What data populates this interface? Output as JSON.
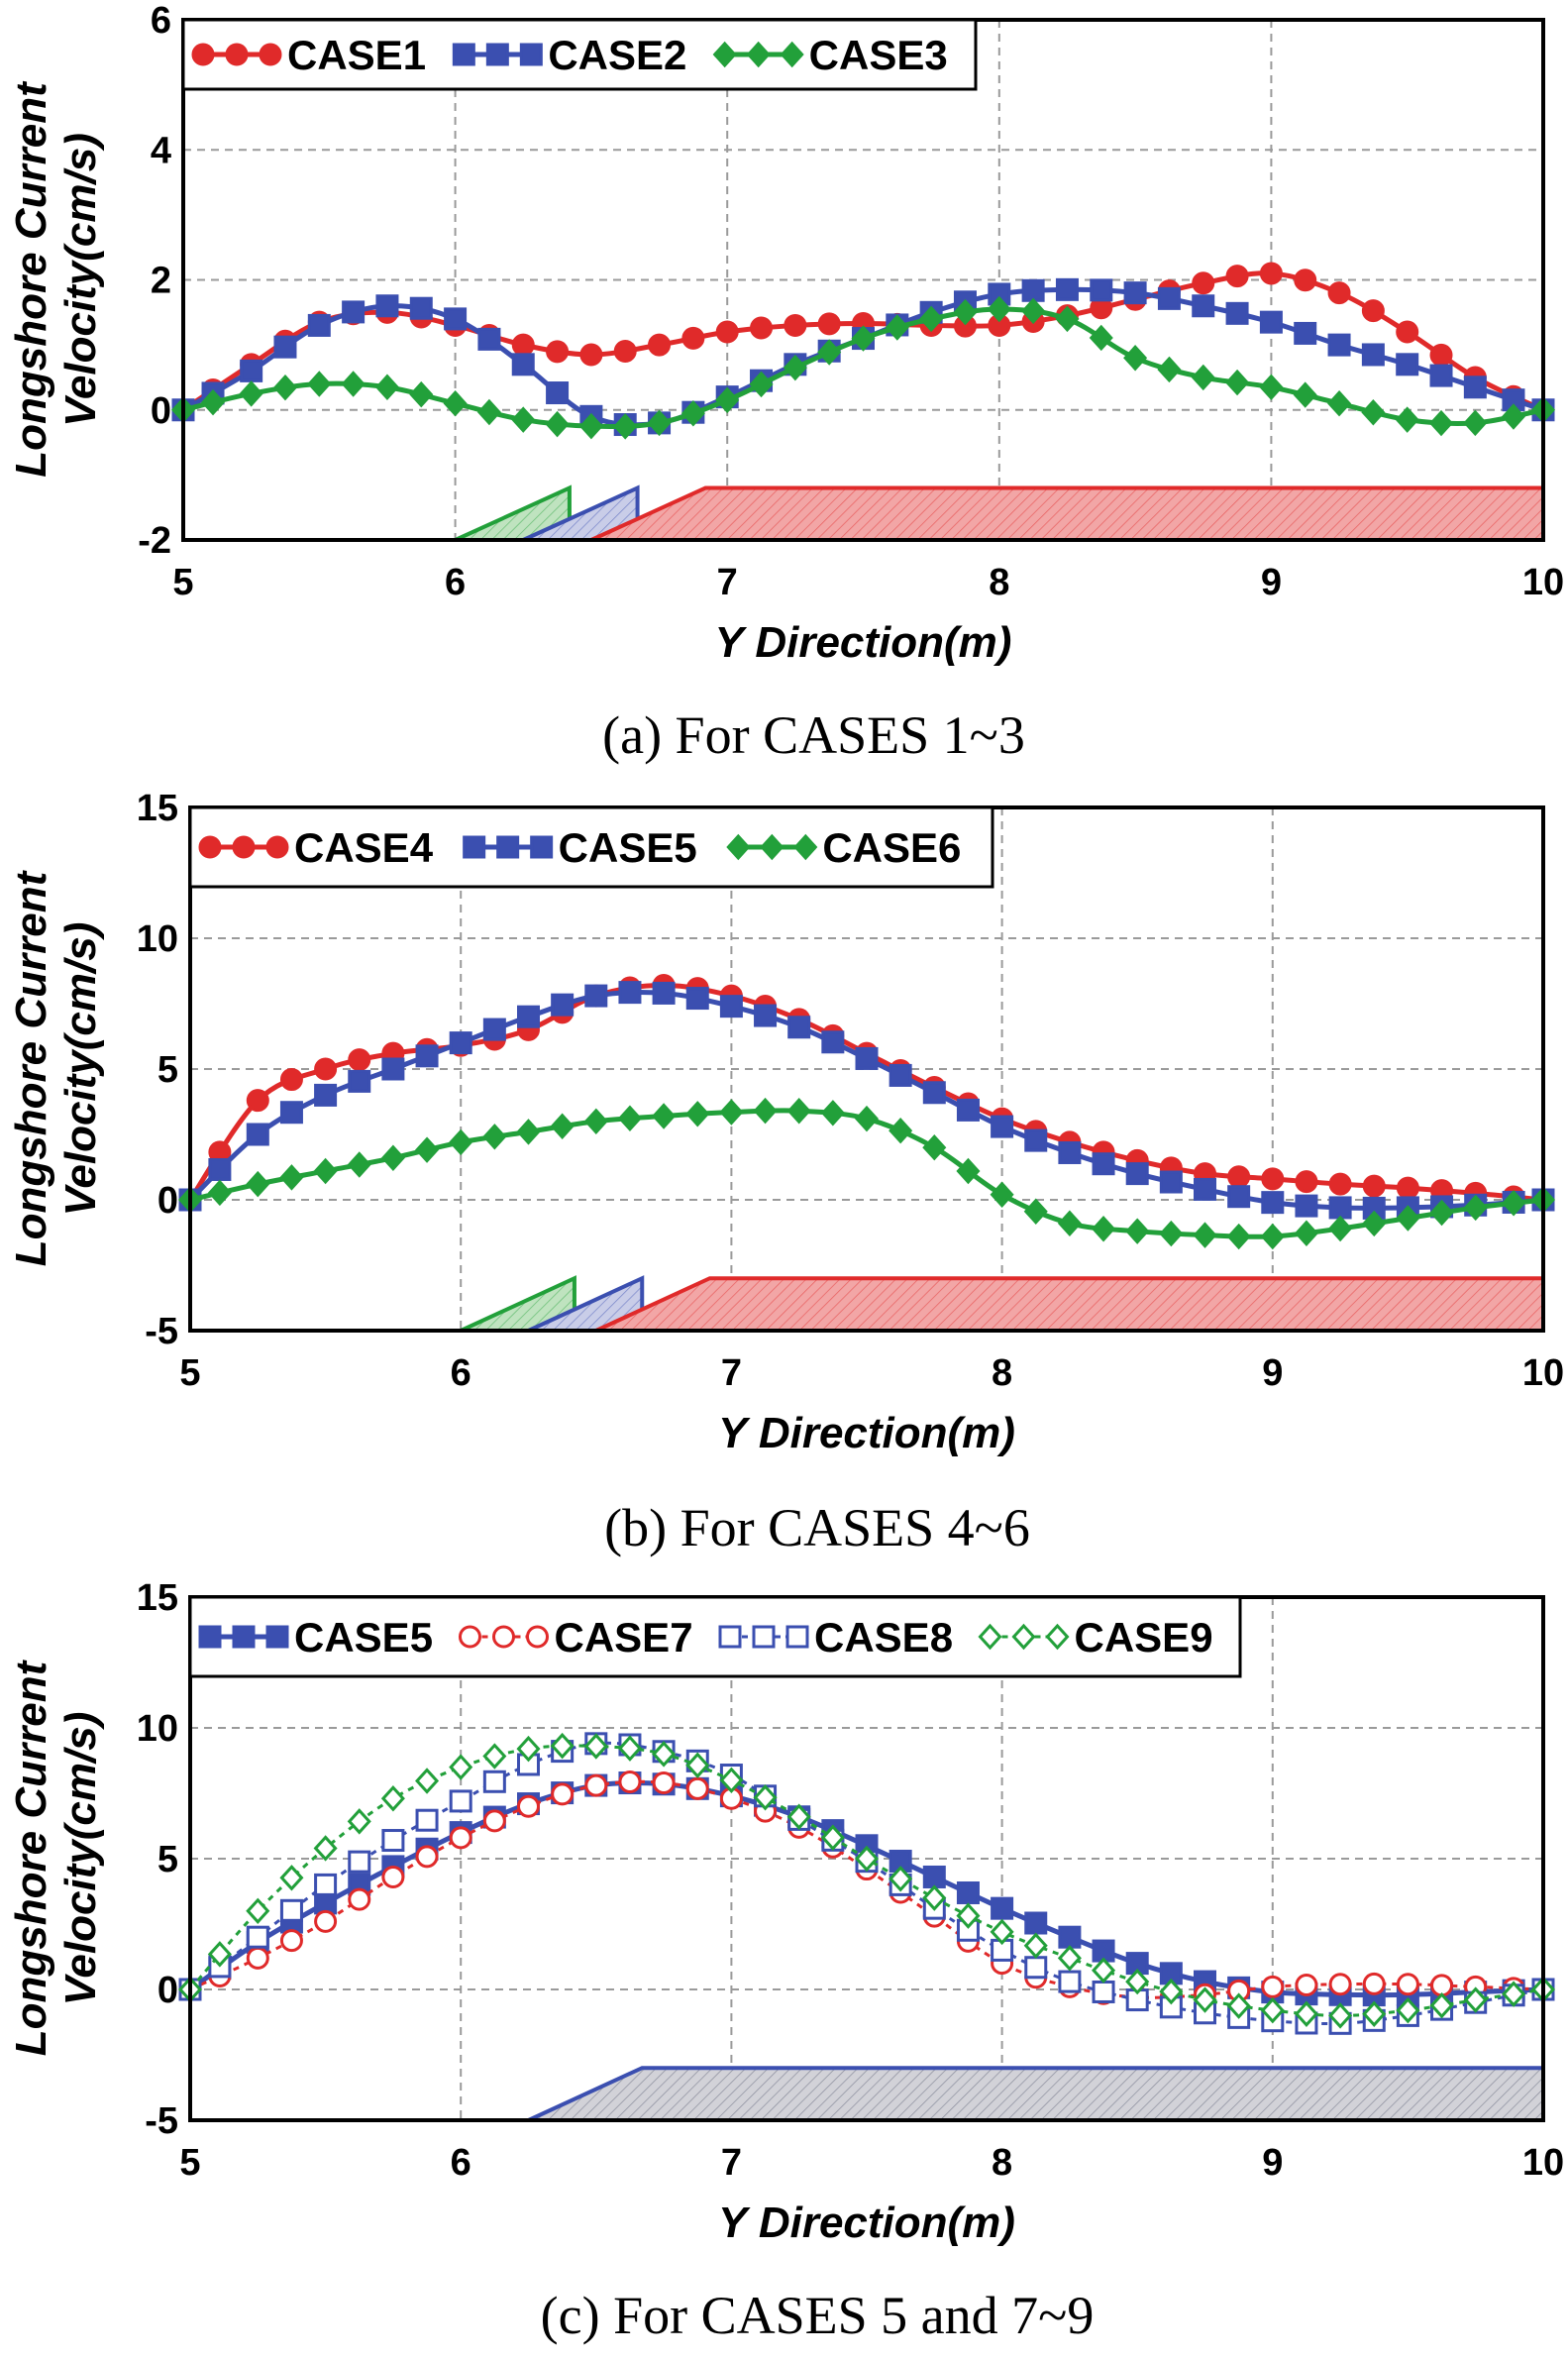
{
  "chart_data": [
    {
      "type": "line",
      "caption": "(a) For CASES 1~3",
      "xlabel": "Y Direction(m)",
      "ylabel_line1": "Longshore Current",
      "ylabel_line2": "Velocity(cm/s)",
      "xlim": [
        5,
        10
      ],
      "ylim": [
        -2,
        6
      ],
      "xticks": [
        "5",
        "6",
        "7",
        "8",
        "9",
        "10"
      ],
      "yticks": [
        "-2",
        "0",
        "2",
        "4",
        "6"
      ],
      "grid": true,
      "legend_position": "top-left",
      "structures": [
        {
          "color": "#22a03a",
          "fill": "#bfe3bf",
          "x_toe": 6.0,
          "x_top": 6.42,
          "base": -2,
          "top": -1.2,
          "x_end": 6.42
        },
        {
          "color": "#3b4fb0",
          "fill": "#c9cde8",
          "x_toe": 6.25,
          "x_top": 6.67,
          "base": -2,
          "top": -1.2,
          "x_end": 6.67
        },
        {
          "color": "#e02a2a",
          "fill": "#f2a6a6",
          "x_toe": 6.5,
          "x_top": 6.92,
          "base": -2,
          "top": -1.2,
          "x_end": 10.0
        }
      ],
      "series": [
        {
          "name": "CASE1",
          "color": "#e02a2a",
          "marker": "circle",
          "filled": true,
          "dashed": false,
          "points": [
            [
              5.0,
              0.0
            ],
            [
              5.25,
              0.7
            ],
            [
              5.5,
              1.35
            ],
            [
              5.75,
              1.5
            ],
            [
              6.0,
              1.3
            ],
            [
              6.25,
              1.0
            ],
            [
              6.5,
              0.85
            ],
            [
              6.75,
              1.0
            ],
            [
              7.0,
              1.2
            ],
            [
              7.25,
              1.3
            ],
            [
              7.5,
              1.33
            ],
            [
              7.75,
              1.3
            ],
            [
              8.0,
              1.3
            ],
            [
              8.25,
              1.45
            ],
            [
              8.5,
              1.7
            ],
            [
              8.75,
              1.95
            ],
            [
              9.0,
              2.1
            ],
            [
              9.25,
              1.8
            ],
            [
              9.5,
              1.2
            ],
            [
              9.75,
              0.5
            ],
            [
              10.0,
              0.0
            ]
          ]
        },
        {
          "name": "CASE2",
          "color": "#3b4fb0",
          "marker": "square",
          "filled": true,
          "dashed": false,
          "points": [
            [
              5.0,
              0.0
            ],
            [
              5.25,
              0.6
            ],
            [
              5.5,
              1.3
            ],
            [
              5.75,
              1.6
            ],
            [
              6.0,
              1.4
            ],
            [
              6.25,
              0.7
            ],
            [
              6.5,
              -0.1
            ],
            [
              6.75,
              -0.2
            ],
            [
              7.0,
              0.2
            ],
            [
              7.25,
              0.7
            ],
            [
              7.5,
              1.1
            ],
            [
              7.75,
              1.5
            ],
            [
              8.0,
              1.78
            ],
            [
              8.25,
              1.85
            ],
            [
              8.5,
              1.8
            ],
            [
              8.75,
              1.6
            ],
            [
              9.0,
              1.35
            ],
            [
              9.25,
              1.0
            ],
            [
              9.5,
              0.7
            ],
            [
              9.75,
              0.35
            ],
            [
              10.0,
              0.0
            ]
          ]
        },
        {
          "name": "CASE3",
          "color": "#22a03a",
          "marker": "diamond",
          "filled": true,
          "dashed": false,
          "points": [
            [
              5.0,
              0.0
            ],
            [
              5.25,
              0.25
            ],
            [
              5.5,
              0.4
            ],
            [
              5.75,
              0.35
            ],
            [
              6.0,
              0.1
            ],
            [
              6.25,
              -0.15
            ],
            [
              6.5,
              -0.25
            ],
            [
              6.75,
              -0.2
            ],
            [
              7.0,
              0.15
            ],
            [
              7.25,
              0.65
            ],
            [
              7.5,
              1.1
            ],
            [
              7.75,
              1.4
            ],
            [
              8.0,
              1.55
            ],
            [
              8.25,
              1.4
            ],
            [
              8.5,
              0.8
            ],
            [
              8.75,
              0.5
            ],
            [
              9.0,
              0.35
            ],
            [
              9.25,
              0.1
            ],
            [
              9.5,
              -0.15
            ],
            [
              9.75,
              -0.2
            ],
            [
              10.0,
              0.0
            ]
          ]
        }
      ]
    },
    {
      "type": "line",
      "caption": "(b) For CASES 4~6",
      "xlabel": "Y Direction(m)",
      "ylabel_line1": "Longshore Current",
      "ylabel_line2": "Velocity(cm/s)",
      "xlim": [
        5,
        10
      ],
      "ylim": [
        -5,
        15
      ],
      "xticks": [
        "5",
        "6",
        "7",
        "8",
        "9",
        "10"
      ],
      "yticks": [
        "-5",
        "0",
        "5",
        "10",
        "15"
      ],
      "grid": true,
      "legend_position": "top-left",
      "structures": [
        {
          "color": "#22a03a",
          "fill": "#bfe3bf",
          "x_toe": 6.0,
          "x_top": 6.42,
          "base": -5,
          "top": -3.0,
          "x_end": 6.42
        },
        {
          "color": "#3b4fb0",
          "fill": "#c9cde8",
          "x_toe": 6.25,
          "x_top": 6.67,
          "base": -5,
          "top": -3.0,
          "x_end": 6.67
        },
        {
          "color": "#e02a2a",
          "fill": "#f2a6a6",
          "x_toe": 6.5,
          "x_top": 6.92,
          "base": -5,
          "top": -3.0,
          "x_end": 10.0
        }
      ],
      "series": [
        {
          "name": "CASE4",
          "color": "#e02a2a",
          "marker": "circle",
          "filled": true,
          "dashed": false,
          "points": [
            [
              5.0,
              0.0
            ],
            [
              5.25,
              3.8
            ],
            [
              5.5,
              5.0
            ],
            [
              5.75,
              5.6
            ],
            [
              6.0,
              5.9
            ],
            [
              6.25,
              6.5
            ],
            [
              6.5,
              7.8
            ],
            [
              6.75,
              8.2
            ],
            [
              7.0,
              7.8
            ],
            [
              7.25,
              6.9
            ],
            [
              7.5,
              5.6
            ],
            [
              7.75,
              4.3
            ],
            [
              8.0,
              3.1
            ],
            [
              8.25,
              2.2
            ],
            [
              8.5,
              1.5
            ],
            [
              8.75,
              1.0
            ],
            [
              9.0,
              0.8
            ],
            [
              9.25,
              0.6
            ],
            [
              9.5,
              0.45
            ],
            [
              9.75,
              0.25
            ],
            [
              10.0,
              0.0
            ]
          ]
        },
        {
          "name": "CASE5",
          "color": "#3b4fb0",
          "marker": "square",
          "filled": true,
          "dashed": false,
          "points": [
            [
              5.0,
              0.0
            ],
            [
              5.25,
              2.5
            ],
            [
              5.5,
              4.0
            ],
            [
              5.75,
              5.0
            ],
            [
              6.0,
              6.0
            ],
            [
              6.25,
              7.0
            ],
            [
              6.5,
              7.8
            ],
            [
              6.75,
              7.9
            ],
            [
              7.0,
              7.4
            ],
            [
              7.25,
              6.6
            ],
            [
              7.5,
              5.4
            ],
            [
              7.75,
              4.1
            ],
            [
              8.0,
              2.8
            ],
            [
              8.25,
              1.8
            ],
            [
              8.5,
              1.0
            ],
            [
              8.75,
              0.4
            ],
            [
              9.0,
              -0.1
            ],
            [
              9.25,
              -0.3
            ],
            [
              9.5,
              -0.3
            ],
            [
              9.75,
              -0.2
            ],
            [
              10.0,
              0.0
            ]
          ]
        },
        {
          "name": "CASE6",
          "color": "#22a03a",
          "marker": "diamond",
          "filled": true,
          "dashed": false,
          "points": [
            [
              5.0,
              0.0
            ],
            [
              5.25,
              0.6
            ],
            [
              5.5,
              1.1
            ],
            [
              5.75,
              1.6
            ],
            [
              6.0,
              2.2
            ],
            [
              6.25,
              2.6
            ],
            [
              6.5,
              3.0
            ],
            [
              6.75,
              3.2
            ],
            [
              7.0,
              3.35
            ],
            [
              7.25,
              3.4
            ],
            [
              7.5,
              3.1
            ],
            [
              7.75,
              2.0
            ],
            [
              8.0,
              0.2
            ],
            [
              8.25,
              -0.9
            ],
            [
              8.5,
              -1.2
            ],
            [
              8.75,
              -1.35
            ],
            [
              9.0,
              -1.4
            ],
            [
              9.25,
              -1.1
            ],
            [
              9.5,
              -0.7
            ],
            [
              9.75,
              -0.3
            ],
            [
              10.0,
              0.0
            ]
          ]
        }
      ]
    },
    {
      "type": "line",
      "caption": "(c) For CASES 5 and 7~9",
      "xlabel": "Y Direction(m)",
      "ylabel_line1": "Longshore Current",
      "ylabel_line2": "Velocity(cm/s)",
      "xlim": [
        5,
        10
      ],
      "ylim": [
        -5,
        15
      ],
      "xticks": [
        "5",
        "6",
        "7",
        "8",
        "9",
        "10"
      ],
      "yticks": [
        "-5",
        "0",
        "5",
        "10",
        "15"
      ],
      "grid": true,
      "legend_position": "top-left",
      "structures": [
        {
          "color": "#3b4fb0",
          "fill": "#d2d2d8",
          "x_toe": 6.25,
          "x_top": 6.67,
          "base": -5,
          "top": -3.0,
          "x_end": 10.0
        }
      ],
      "series": [
        {
          "name": "CASE5",
          "color": "#3b4fb0",
          "marker": "square",
          "filled": true,
          "dashed": false,
          "points": [
            [
              5.0,
              0.0
            ],
            [
              5.25,
              1.8
            ],
            [
              5.5,
              3.3
            ],
            [
              5.75,
              4.7
            ],
            [
              6.0,
              6.0
            ],
            [
              6.25,
              7.1
            ],
            [
              6.5,
              7.8
            ],
            [
              6.75,
              7.85
            ],
            [
              7.0,
              7.4
            ],
            [
              7.25,
              6.6
            ],
            [
              7.5,
              5.5
            ],
            [
              7.75,
              4.3
            ],
            [
              8.0,
              3.1
            ],
            [
              8.25,
              2.0
            ],
            [
              8.5,
              1.0
            ],
            [
              8.75,
              0.3
            ],
            [
              9.0,
              -0.1
            ],
            [
              9.25,
              -0.2
            ],
            [
              9.5,
              -0.2
            ],
            [
              9.75,
              -0.1
            ],
            [
              10.0,
              0.0
            ]
          ]
        },
        {
          "name": "CASE7",
          "color": "#e02a2a",
          "marker": "circle",
          "filled": false,
          "dashed": true,
          "points": [
            [
              5.0,
              0.0
            ],
            [
              5.25,
              1.2
            ],
            [
              5.5,
              2.6
            ],
            [
              5.75,
              4.3
            ],
            [
              6.0,
              5.8
            ],
            [
              6.25,
              7.0
            ],
            [
              6.5,
              7.8
            ],
            [
              6.75,
              7.9
            ],
            [
              7.0,
              7.3
            ],
            [
              7.25,
              6.2
            ],
            [
              7.5,
              4.6
            ],
            [
              7.75,
              2.8
            ],
            [
              8.0,
              1.0
            ],
            [
              8.25,
              0.1
            ],
            [
              8.5,
              -0.3
            ],
            [
              8.75,
              -0.2
            ],
            [
              9.0,
              0.1
            ],
            [
              9.25,
              0.2
            ],
            [
              9.5,
              0.2
            ],
            [
              9.75,
              0.1
            ],
            [
              10.0,
              0.0
            ]
          ]
        },
        {
          "name": "CASE8",
          "color": "#3b4fb0",
          "marker": "square",
          "filled": false,
          "dashed": true,
          "points": [
            [
              5.0,
              0.0
            ],
            [
              5.25,
              2.0
            ],
            [
              5.5,
              4.0
            ],
            [
              5.75,
              5.7
            ],
            [
              6.0,
              7.2
            ],
            [
              6.25,
              8.6
            ],
            [
              6.5,
              9.4
            ],
            [
              6.75,
              9.1
            ],
            [
              7.0,
              8.2
            ],
            [
              7.25,
              6.5
            ],
            [
              7.5,
              4.9
            ],
            [
              7.75,
              3.1
            ],
            [
              8.0,
              1.5
            ],
            [
              8.25,
              0.3
            ],
            [
              8.5,
              -0.4
            ],
            [
              8.75,
              -0.9
            ],
            [
              9.0,
              -1.2
            ],
            [
              9.25,
              -1.3
            ],
            [
              9.5,
              -1.0
            ],
            [
              9.75,
              -0.5
            ],
            [
              10.0,
              0.0
            ]
          ]
        },
        {
          "name": "CASE9",
          "color": "#22a03a",
          "marker": "diamond",
          "filled": false,
          "dashed": true,
          "points": [
            [
              5.0,
              0.0
            ],
            [
              5.25,
              3.0
            ],
            [
              5.5,
              5.4
            ],
            [
              5.75,
              7.3
            ],
            [
              6.0,
              8.5
            ],
            [
              6.25,
              9.2
            ],
            [
              6.5,
              9.3
            ],
            [
              6.75,
              9.0
            ],
            [
              7.0,
              8.0
            ],
            [
              7.25,
              6.6
            ],
            [
              7.5,
              5.0
            ],
            [
              7.75,
              3.5
            ],
            [
              8.0,
              2.2
            ],
            [
              8.25,
              1.2
            ],
            [
              8.5,
              0.3
            ],
            [
              8.75,
              -0.4
            ],
            [
              9.0,
              -0.8
            ],
            [
              9.25,
              -1.0
            ],
            [
              9.5,
              -0.8
            ],
            [
              9.75,
              -0.4
            ],
            [
              10.0,
              0.0
            ]
          ]
        }
      ]
    }
  ]
}
